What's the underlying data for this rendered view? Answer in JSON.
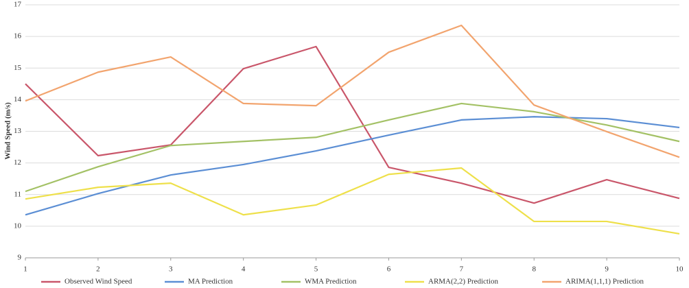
{
  "chart_data": {
    "type": "line",
    "y_label": "Wind Speed (m/s)",
    "x": [
      1,
      2,
      3,
      4,
      5,
      6,
      7,
      8,
      9,
      10
    ],
    "xlim": [
      1,
      10
    ],
    "xticks": [
      1,
      2,
      3,
      4,
      5,
      6,
      7,
      8,
      9,
      10
    ],
    "ylim": [
      9,
      17
    ],
    "yticks": [
      9,
      10,
      11,
      12,
      13,
      14,
      15,
      16,
      17
    ],
    "grid": true,
    "legend": "bottom",
    "series": [
      {
        "name": "Observed Wind Speed",
        "color": "#c9566a",
        "values": [
          14.5,
          12.23,
          12.57,
          14.98,
          15.68,
          11.86,
          11.36,
          10.73,
          11.47,
          10.88
        ]
      },
      {
        "name": "MA Prediction",
        "color": "#5b8ed4",
        "values": [
          10.36,
          11.03,
          11.62,
          11.95,
          12.38,
          12.88,
          13.36,
          13.46,
          13.4,
          13.12
        ]
      },
      {
        "name": "WMA Prediction",
        "color": "#a3c165",
        "values": [
          11.1,
          11.88,
          12.55,
          12.68,
          12.81,
          13.36,
          13.88,
          13.62,
          13.2,
          12.68
        ]
      },
      {
        "name": "ARMA(2,2) Prediction",
        "color": "#eee04a",
        "values": [
          10.86,
          11.23,
          11.36,
          10.36,
          10.67,
          11.64,
          11.84,
          10.15,
          10.15,
          9.76
        ]
      },
      {
        "name": "ARIMA(1,1,1) Prediction",
        "color": "#f2a46e",
        "values": [
          13.96,
          14.87,
          15.35,
          13.88,
          13.81,
          15.5,
          16.35,
          13.83,
          12.99,
          12.18
        ]
      }
    ]
  }
}
